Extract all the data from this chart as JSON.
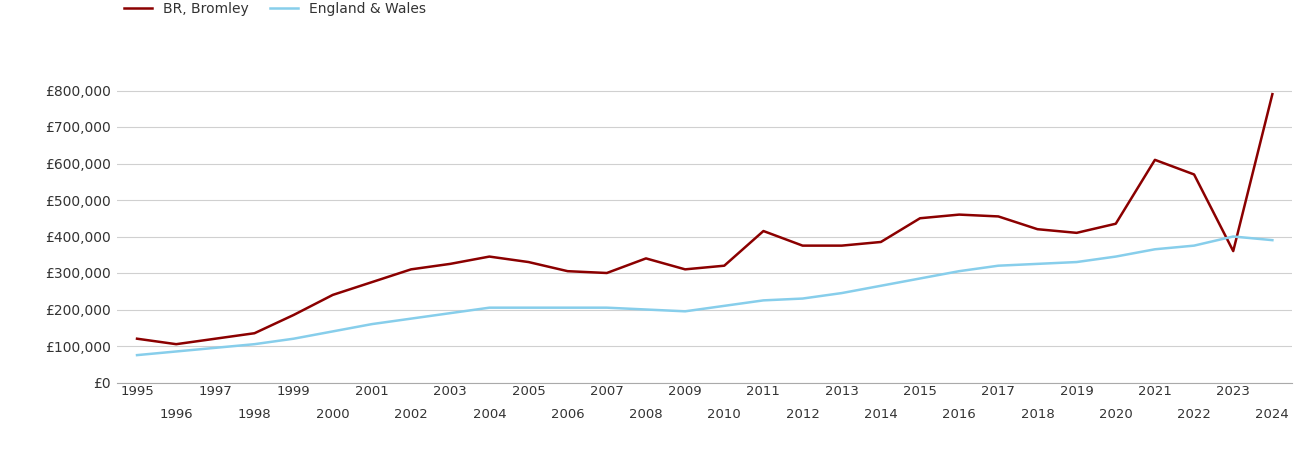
{
  "years": [
    1995,
    1996,
    1997,
    1998,
    1999,
    2000,
    2001,
    2002,
    2003,
    2004,
    2005,
    2006,
    2007,
    2008,
    2009,
    2010,
    2011,
    2012,
    2013,
    2014,
    2015,
    2016,
    2017,
    2018,
    2019,
    2020,
    2021,
    2022,
    2023,
    2024
  ],
  "bromley": [
    120000,
    105000,
    120000,
    135000,
    185000,
    240000,
    275000,
    310000,
    325000,
    345000,
    330000,
    305000,
    300000,
    340000,
    310000,
    320000,
    415000,
    375000,
    375000,
    385000,
    450000,
    460000,
    455000,
    420000,
    410000,
    435000,
    610000,
    570000,
    360000,
    790000
  ],
  "england_wales": [
    75000,
    85000,
    95000,
    105000,
    120000,
    140000,
    160000,
    175000,
    190000,
    205000,
    205000,
    205000,
    205000,
    200000,
    195000,
    210000,
    225000,
    230000,
    245000,
    265000,
    285000,
    305000,
    320000,
    325000,
    330000,
    345000,
    365000,
    375000,
    400000,
    390000
  ],
  "bromley_color": "#8B0000",
  "england_wales_color": "#87CEEB",
  "bromley_label": "BR, Bromley",
  "england_wales_label": "England & Wales",
  "ylim": [
    0,
    900000
  ],
  "yticks": [
    0,
    100000,
    200000,
    300000,
    400000,
    500000,
    600000,
    700000,
    800000
  ],
  "ytick_labels": [
    "£0",
    "£100,000",
    "£200,000",
    "£300,000",
    "£400,000",
    "£500,000",
    "£600,000",
    "£700,000",
    "£800,000"
  ],
  "odd_xticks": [
    1995,
    1997,
    1999,
    2001,
    2003,
    2005,
    2007,
    2009,
    2011,
    2013,
    2015,
    2017,
    2019,
    2021,
    2023
  ],
  "even_xticks": [
    1996,
    1998,
    2000,
    2002,
    2004,
    2006,
    2008,
    2010,
    2012,
    2014,
    2016,
    2018,
    2020,
    2022,
    2024
  ],
  "line_width": 1.8,
  "background_color": "#ffffff",
  "grid_color": "#d0d0d0"
}
